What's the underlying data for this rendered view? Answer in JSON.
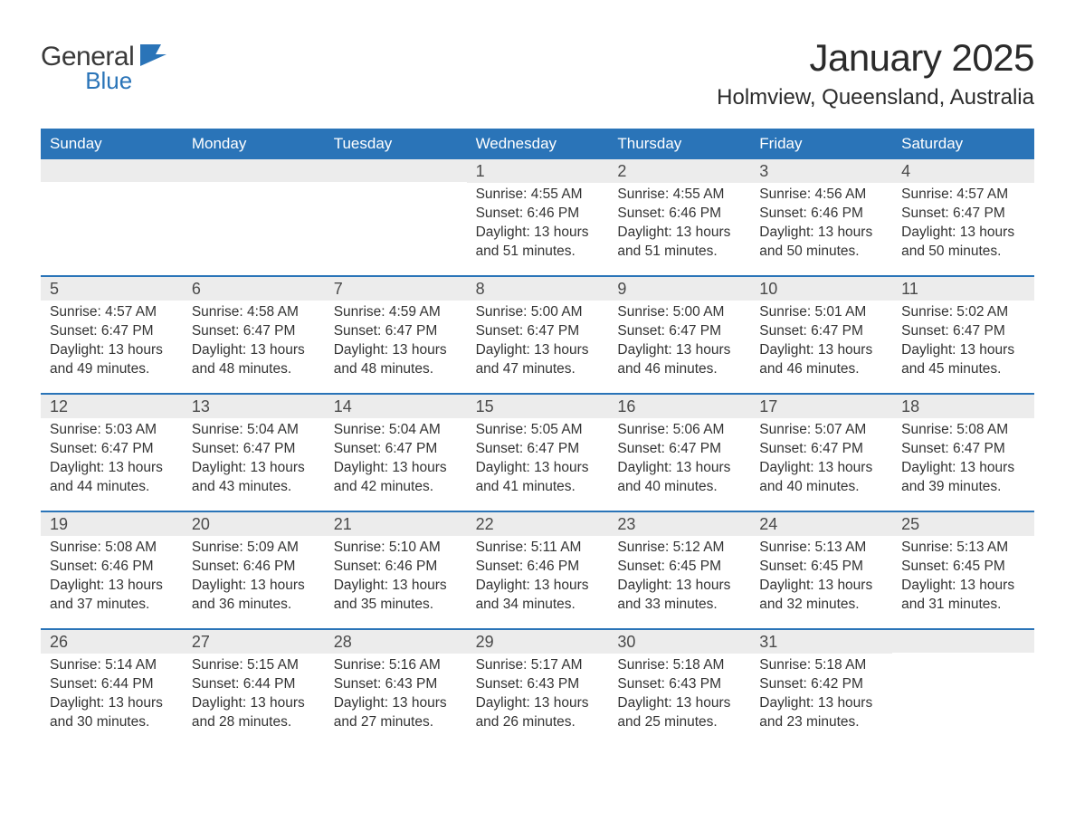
{
  "brand": {
    "name1": "General",
    "name2": "Blue",
    "accent": "#2a74b8"
  },
  "title": "January 2025",
  "subtitle": "Holmview, Queensland, Australia",
  "colors": {
    "header_bg": "#2a74b8",
    "header_text": "#ffffff",
    "daynum_bg": "#ececec",
    "body_text": "#333333",
    "rule": "#2a74b8"
  },
  "weekdays": [
    "Sunday",
    "Monday",
    "Tuesday",
    "Wednesday",
    "Thursday",
    "Friday",
    "Saturday"
  ],
  "labels": {
    "sunrise": "Sunrise",
    "sunset": "Sunset",
    "daylight": "Daylight"
  },
  "weeks": [
    [
      null,
      null,
      null,
      {
        "n": 1,
        "sunrise": "4:55 AM",
        "sunset": "6:46 PM",
        "daylight": "13 hours and 51 minutes."
      },
      {
        "n": 2,
        "sunrise": "4:55 AM",
        "sunset": "6:46 PM",
        "daylight": "13 hours and 51 minutes."
      },
      {
        "n": 3,
        "sunrise": "4:56 AM",
        "sunset": "6:46 PM",
        "daylight": "13 hours and 50 minutes."
      },
      {
        "n": 4,
        "sunrise": "4:57 AM",
        "sunset": "6:47 PM",
        "daylight": "13 hours and 50 minutes."
      }
    ],
    [
      {
        "n": 5,
        "sunrise": "4:57 AM",
        "sunset": "6:47 PM",
        "daylight": "13 hours and 49 minutes."
      },
      {
        "n": 6,
        "sunrise": "4:58 AM",
        "sunset": "6:47 PM",
        "daylight": "13 hours and 48 minutes."
      },
      {
        "n": 7,
        "sunrise": "4:59 AM",
        "sunset": "6:47 PM",
        "daylight": "13 hours and 48 minutes."
      },
      {
        "n": 8,
        "sunrise": "5:00 AM",
        "sunset": "6:47 PM",
        "daylight": "13 hours and 47 minutes."
      },
      {
        "n": 9,
        "sunrise": "5:00 AM",
        "sunset": "6:47 PM",
        "daylight": "13 hours and 46 minutes."
      },
      {
        "n": 10,
        "sunrise": "5:01 AM",
        "sunset": "6:47 PM",
        "daylight": "13 hours and 46 minutes."
      },
      {
        "n": 11,
        "sunrise": "5:02 AM",
        "sunset": "6:47 PM",
        "daylight": "13 hours and 45 minutes."
      }
    ],
    [
      {
        "n": 12,
        "sunrise": "5:03 AM",
        "sunset": "6:47 PM",
        "daylight": "13 hours and 44 minutes."
      },
      {
        "n": 13,
        "sunrise": "5:04 AM",
        "sunset": "6:47 PM",
        "daylight": "13 hours and 43 minutes."
      },
      {
        "n": 14,
        "sunrise": "5:04 AM",
        "sunset": "6:47 PM",
        "daylight": "13 hours and 42 minutes."
      },
      {
        "n": 15,
        "sunrise": "5:05 AM",
        "sunset": "6:47 PM",
        "daylight": "13 hours and 41 minutes."
      },
      {
        "n": 16,
        "sunrise": "5:06 AM",
        "sunset": "6:47 PM",
        "daylight": "13 hours and 40 minutes."
      },
      {
        "n": 17,
        "sunrise": "5:07 AM",
        "sunset": "6:47 PM",
        "daylight": "13 hours and 40 minutes."
      },
      {
        "n": 18,
        "sunrise": "5:08 AM",
        "sunset": "6:47 PM",
        "daylight": "13 hours and 39 minutes."
      }
    ],
    [
      {
        "n": 19,
        "sunrise": "5:08 AM",
        "sunset": "6:46 PM",
        "daylight": "13 hours and 37 minutes."
      },
      {
        "n": 20,
        "sunrise": "5:09 AM",
        "sunset": "6:46 PM",
        "daylight": "13 hours and 36 minutes."
      },
      {
        "n": 21,
        "sunrise": "5:10 AM",
        "sunset": "6:46 PM",
        "daylight": "13 hours and 35 minutes."
      },
      {
        "n": 22,
        "sunrise": "5:11 AM",
        "sunset": "6:46 PM",
        "daylight": "13 hours and 34 minutes."
      },
      {
        "n": 23,
        "sunrise": "5:12 AM",
        "sunset": "6:45 PM",
        "daylight": "13 hours and 33 minutes."
      },
      {
        "n": 24,
        "sunrise": "5:13 AM",
        "sunset": "6:45 PM",
        "daylight": "13 hours and 32 minutes."
      },
      {
        "n": 25,
        "sunrise": "5:13 AM",
        "sunset": "6:45 PM",
        "daylight": "13 hours and 31 minutes."
      }
    ],
    [
      {
        "n": 26,
        "sunrise": "5:14 AM",
        "sunset": "6:44 PM",
        "daylight": "13 hours and 30 minutes."
      },
      {
        "n": 27,
        "sunrise": "5:15 AM",
        "sunset": "6:44 PM",
        "daylight": "13 hours and 28 minutes."
      },
      {
        "n": 28,
        "sunrise": "5:16 AM",
        "sunset": "6:43 PM",
        "daylight": "13 hours and 27 minutes."
      },
      {
        "n": 29,
        "sunrise": "5:17 AM",
        "sunset": "6:43 PM",
        "daylight": "13 hours and 26 minutes."
      },
      {
        "n": 30,
        "sunrise": "5:18 AM",
        "sunset": "6:43 PM",
        "daylight": "13 hours and 25 minutes."
      },
      {
        "n": 31,
        "sunrise": "5:18 AM",
        "sunset": "6:42 PM",
        "daylight": "13 hours and 23 minutes."
      },
      null
    ]
  ]
}
